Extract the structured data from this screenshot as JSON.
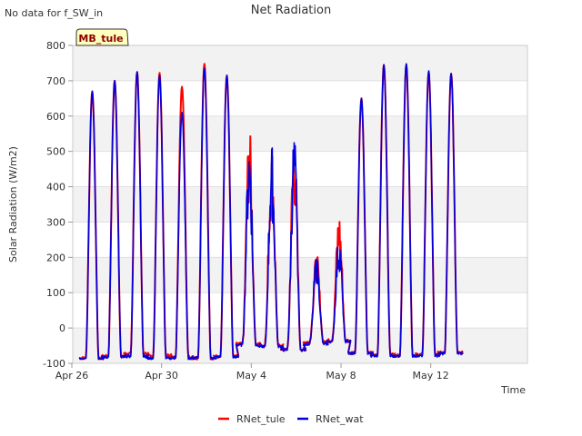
{
  "chart_data": {
    "type": "line",
    "title": "Net Radiation",
    "top_left_note": "No data for f_SW_in",
    "site_label": "MB_tule",
    "xlabel": "Time",
    "ylabel": "Solar Radiation (W/m2)",
    "ylim": [
      -100,
      800
    ],
    "yticks": [
      -100,
      0,
      100,
      200,
      300,
      400,
      500,
      600,
      700,
      800
    ],
    "xlim": [
      "2020-04-26",
      "2020-05-14"
    ],
    "xticks": [
      {
        "label": "Apr 26",
        "date": "2020-04-26"
      },
      {
        "label": "Apr 30",
        "date": "2020-04-30"
      },
      {
        "label": "May 4",
        "date": "2020-05-04"
      },
      {
        "label": "May 8",
        "date": "2020-05-08"
      },
      {
        "label": "May 12",
        "date": "2020-05-12"
      }
    ],
    "grid": true,
    "legend_position": "bottom-center",
    "series": [
      {
        "name": "RNet_tule",
        "color": "#ff0000",
        "daily_peaks": [
          {
            "date": "2020-04-26",
            "peak": 670,
            "night": -85
          },
          {
            "date": "2020-04-27",
            "peak": 700,
            "night": -80
          },
          {
            "date": "2020-04-28",
            "peak": 725,
            "night": -72
          },
          {
            "date": "2020-04-29",
            "peak": 722,
            "night": -78
          },
          {
            "date": "2020-04-30",
            "peak": 683,
            "night": -82
          },
          {
            "date": "2020-05-01",
            "peak": 748,
            "night": -85
          },
          {
            "date": "2020-05-02",
            "peak": 715,
            "night": -80
          },
          {
            "date": "2020-05-03",
            "peak": 580,
            "night": -45
          },
          {
            "date": "2020-05-04",
            "peak": 525,
            "night": -50
          },
          {
            "date": "2020-05-05",
            "peak": 565,
            "night": -60
          },
          {
            "date": "2020-05-06",
            "peak": 215,
            "night": -40
          },
          {
            "date": "2020-05-07",
            "peak": 335,
            "night": -35
          },
          {
            "date": "2020-05-08",
            "peak": 650,
            "night": -70
          },
          {
            "date": "2020-05-09",
            "peak": 745,
            "night": -75
          },
          {
            "date": "2020-05-10",
            "peak": 745,
            "night": -78
          },
          {
            "date": "2020-05-11",
            "peak": 725,
            "night": -75
          },
          {
            "date": "2020-05-12",
            "peak": 720,
            "night": -70
          }
        ]
      },
      {
        "name": "RNet_wat",
        "color": "#0000dd",
        "daily_peaks": [
          {
            "date": "2020-04-26",
            "peak": 670,
            "night": -85
          },
          {
            "date": "2020-04-27",
            "peak": 700,
            "night": -82
          },
          {
            "date": "2020-04-28",
            "peak": 725,
            "night": -80
          },
          {
            "date": "2020-04-29",
            "peak": 715,
            "night": -85
          },
          {
            "date": "2020-04-30",
            "peak": 610,
            "night": -85
          },
          {
            "date": "2020-05-01",
            "peak": 735,
            "night": -85
          },
          {
            "date": "2020-05-02",
            "peak": 715,
            "night": -82
          },
          {
            "date": "2020-05-03",
            "peak": 555,
            "night": -48
          },
          {
            "date": "2020-05-04",
            "peak": 525,
            "night": -52
          },
          {
            "date": "2020-05-05",
            "peak": 565,
            "night": -62
          },
          {
            "date": "2020-05-06",
            "peak": 210,
            "night": -45
          },
          {
            "date": "2020-05-07",
            "peak": 270,
            "night": -38
          },
          {
            "date": "2020-05-08",
            "peak": 650,
            "night": -72
          },
          {
            "date": "2020-05-09",
            "peak": 745,
            "night": -78
          },
          {
            "date": "2020-05-10",
            "peak": 748,
            "night": -80
          },
          {
            "date": "2020-05-11",
            "peak": 728,
            "night": -78
          },
          {
            "date": "2020-05-12",
            "peak": 720,
            "night": -72
          }
        ]
      }
    ]
  }
}
